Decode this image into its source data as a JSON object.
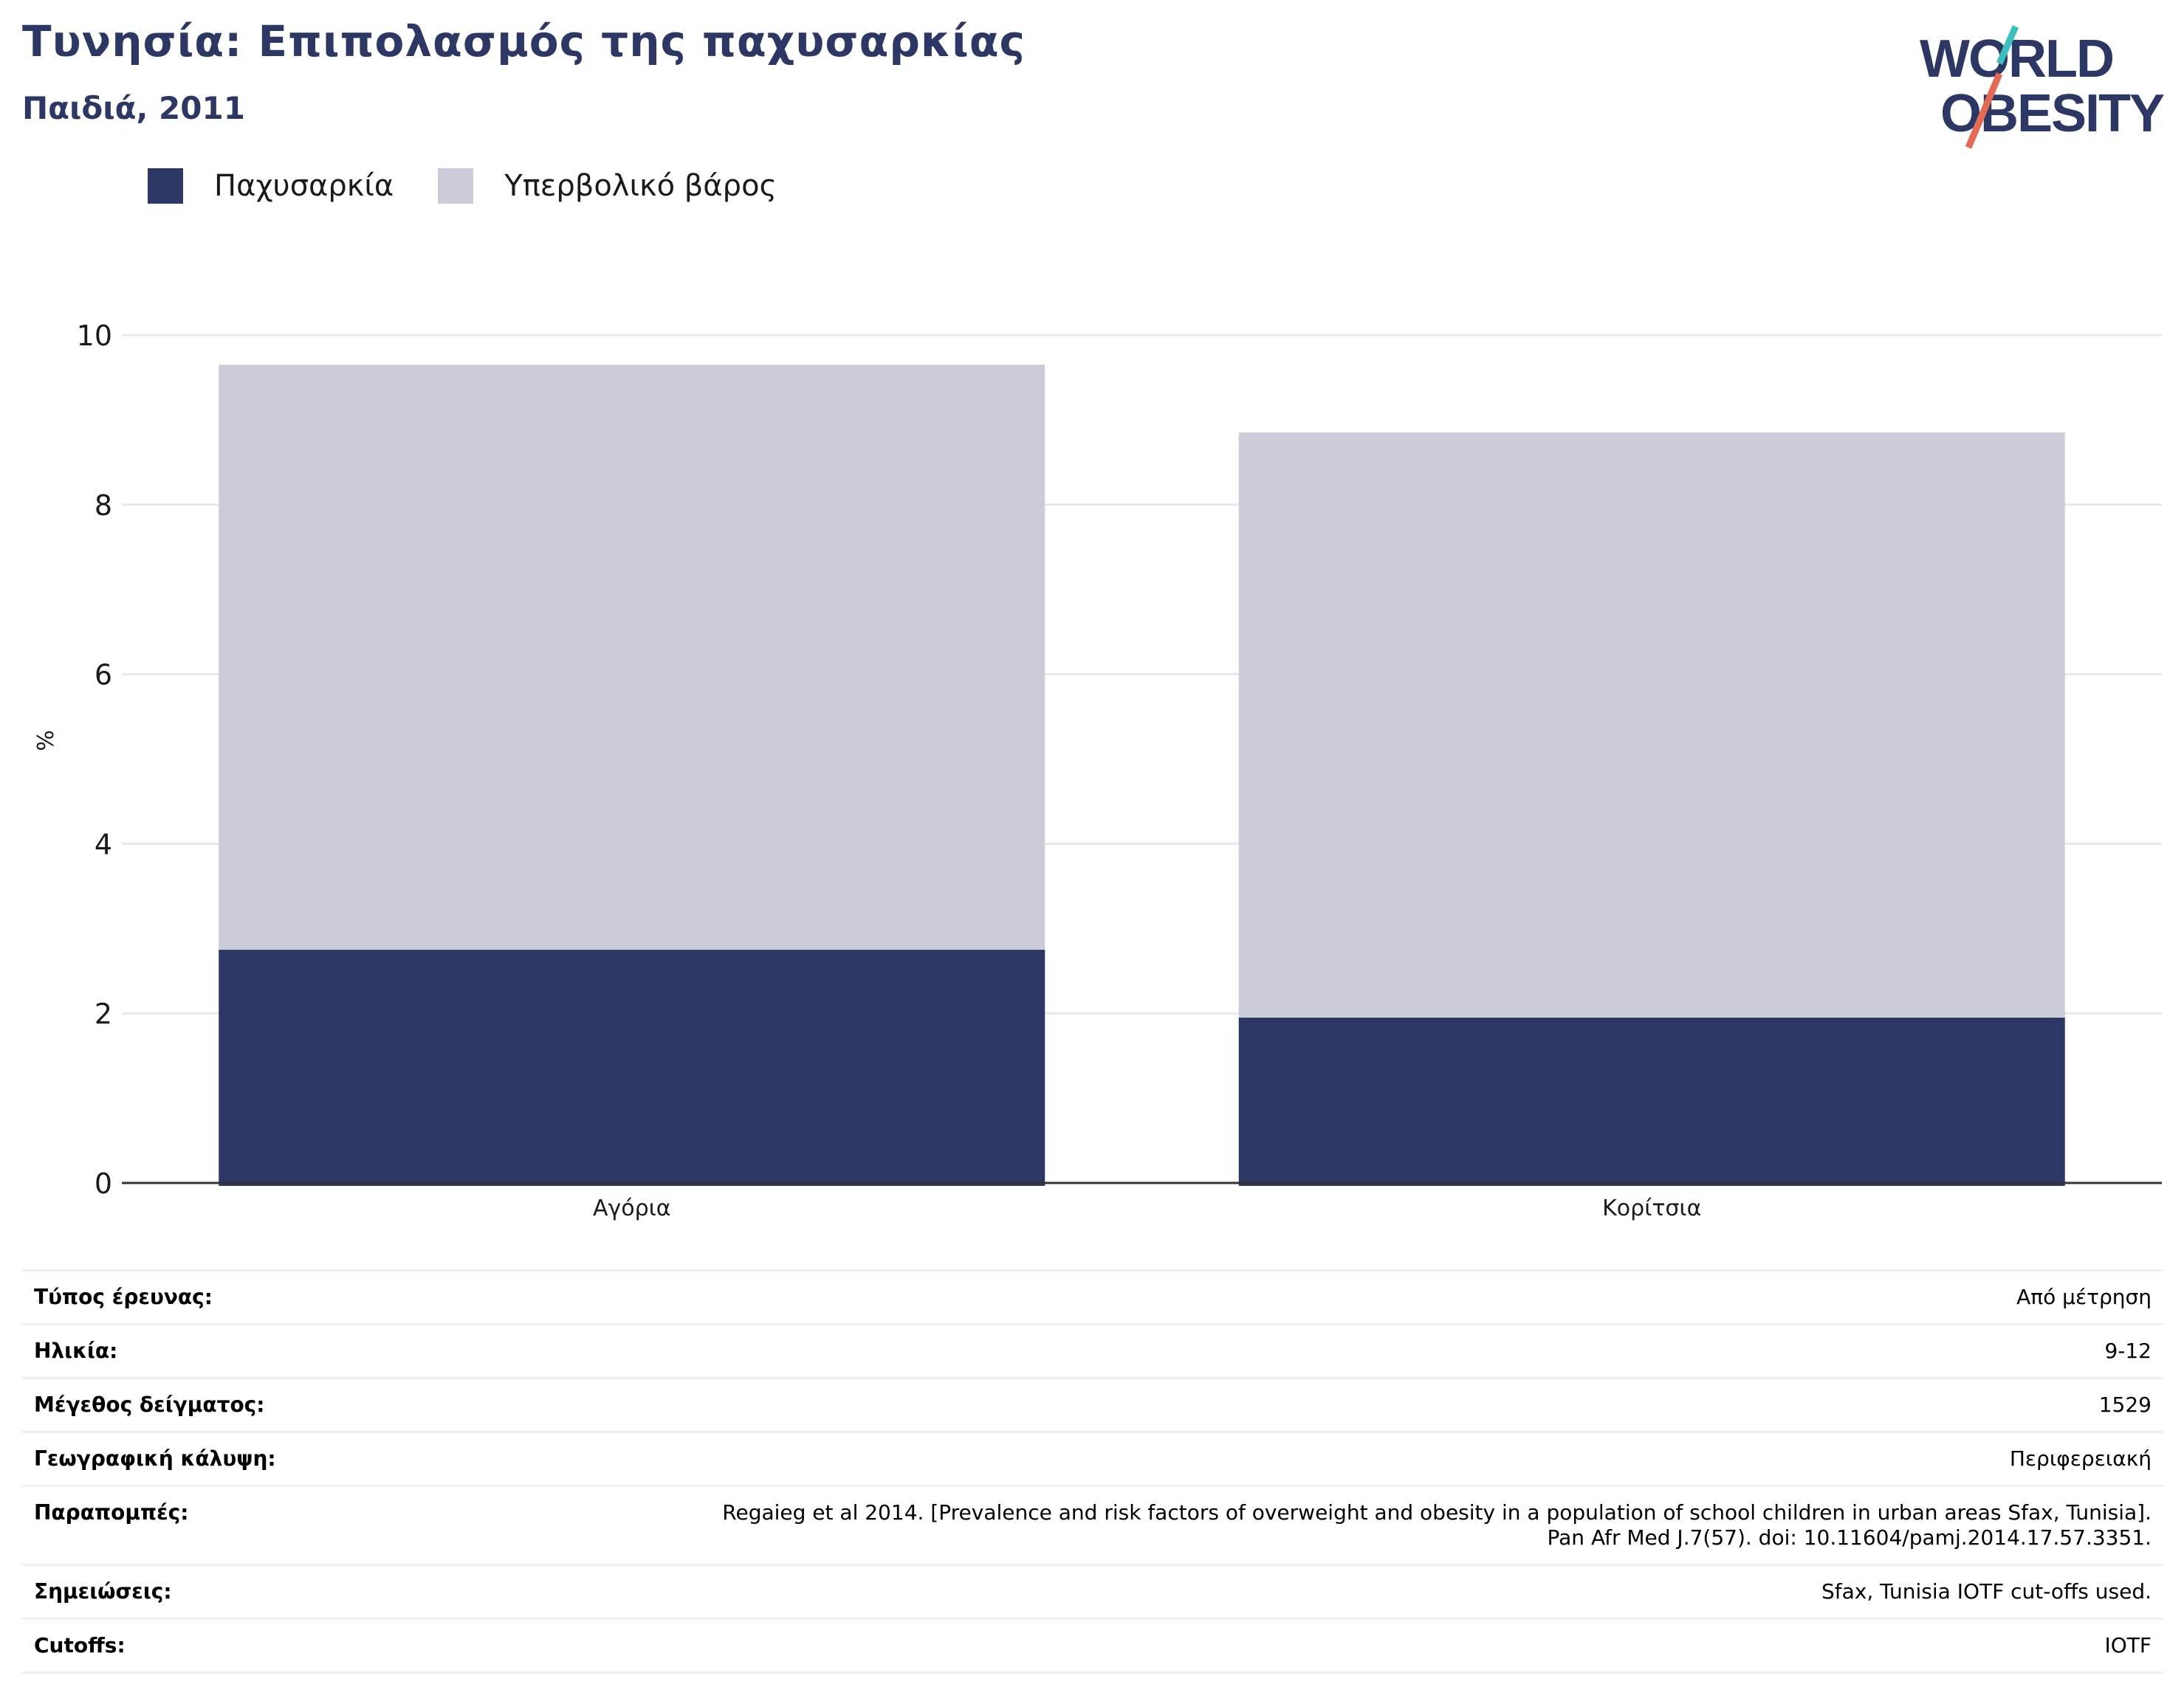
{
  "header": {
    "title": "Τυνησία: Επιπολασμός της παχυσαρκίας",
    "subtitle": "Παιδιά, 2011"
  },
  "logo": {
    "line1": "WORLD",
    "line2": "OBESITY",
    "colors": {
      "text": "#2c3764",
      "slash_red": "#e36b55",
      "slash_teal": "#3dbfbf"
    }
  },
  "legend": [
    {
      "label": "Παχυσαρκία",
      "color": "#2c3764"
    },
    {
      "label": "Υπερβολικό βάρος",
      "color": "#cacdd8"
    }
  ],
  "chart_data": {
    "type": "bar",
    "stacked": true,
    "title": "Τυνησία: Επιπολασμός της παχυσαρκίας",
    "subtitle": "Παιδιά, 2011",
    "categories": [
      "Αγόρια",
      "Κορίτσια"
    ],
    "series": [
      {
        "name": "Παχυσαρκία",
        "values": [
          2.75,
          1.95
        ],
        "color": "#2c3764"
      },
      {
        "name": "Υπερβολικό βάρος",
        "values": [
          6.9,
          6.9
        ],
        "color": "#cacdd8"
      }
    ],
    "xlabel": "",
    "ylabel": "%",
    "ylim": [
      0,
      10
    ],
    "yticks": [
      0,
      2,
      4,
      6,
      8,
      10
    ],
    "grid": true,
    "legend_position": "top-left"
  },
  "info": [
    {
      "label": "Τύπος έρευνας:",
      "value": "Από μέτρηση"
    },
    {
      "label": "Ηλικία:",
      "value": "9-12"
    },
    {
      "label": "Μέγεθος δείγματος:",
      "value": "1529"
    },
    {
      "label": "Γεωγραφική κάλυψη:",
      "value": "Περιφερειακή"
    },
    {
      "label": "Παραπομπές:",
      "value": "Regaieg et al 2014. [Prevalence and risk factors of overweight and obesity in a population of school children in urban areas Sfax, Tunisia].",
      "value2": "Pan Afr Med J.7(57). doi: 10.11604/pamj.2014.17.57.3351."
    },
    {
      "label": "Σημειώσεις:",
      "value": "Sfax, Tunisia IOTF cut-offs used."
    },
    {
      "label": "Cutoffs:",
      "value": "IOTF"
    }
  ]
}
